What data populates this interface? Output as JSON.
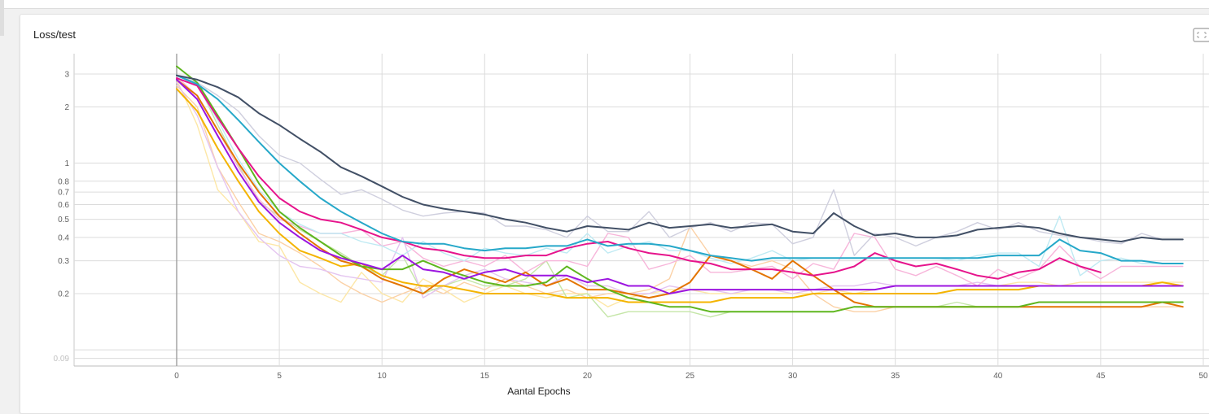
{
  "card": {
    "title": "Loss/test"
  },
  "chart_data": {
    "type": "line",
    "title": "Loss/test",
    "xlabel": "Aantal Epochs",
    "ylabel": "",
    "yscale": "log",
    "xlim": [
      -5,
      50
    ],
    "ylim": [
      0.085,
      3.6
    ],
    "xticks": [
      0,
      5,
      10,
      15,
      20,
      25,
      30,
      35,
      40,
      45,
      50
    ],
    "yticks": [
      {
        "value": 0.09,
        "label": "0.09"
      },
      {
        "value": 0.2,
        "label": "0.2"
      },
      {
        "value": 0.3,
        "label": "0.3"
      },
      {
        "value": 0.4,
        "label": "0.4"
      },
      {
        "value": 0.5,
        "label": "0.5"
      },
      {
        "value": 0.6,
        "label": "0.6"
      },
      {
        "value": 0.7,
        "label": "0.7"
      },
      {
        "value": 0.8,
        "label": "0.8"
      },
      {
        "value": 1,
        "label": "1"
      },
      {
        "value": 2,
        "label": "2"
      },
      {
        "value": 3,
        "label": "3"
      }
    ],
    "extra_gridlines": [
      0.1
    ],
    "grid": true,
    "series": [
      {
        "color": "#fde7a7",
        "light": true,
        "values": [
          2.8,
          1.6,
          0.72,
          0.55,
          0.38,
          0.36,
          0.23,
          0.2,
          0.18,
          0.26,
          0.2,
          0.18,
          0.24,
          0.21,
          0.18,
          0.2,
          0.22,
          0.2,
          0.19,
          0.2,
          0.2,
          0.17,
          0.19,
          0.2,
          0.21,
          0.21,
          0.2,
          0.2,
          0.2,
          0.2,
          0.2,
          0.2,
          0.21,
          0.2,
          0.21,
          0.22,
          0.22,
          0.22,
          0.22,
          0.22,
          0.22,
          0.23,
          0.23,
          0.22,
          0.23,
          0.23,
          0.23,
          0.23,
          0.23,
          0.23
        ]
      },
      {
        "color": "#fbd1a6",
        "light": true,
        "values": [
          2.6,
          2.0,
          0.95,
          0.62,
          0.42,
          0.38,
          0.33,
          0.28,
          0.23,
          0.2,
          0.18,
          0.2,
          0.22,
          0.2,
          0.23,
          0.21,
          0.24,
          0.22,
          0.2,
          0.21,
          0.19,
          0.2,
          0.2,
          0.21,
          0.24,
          0.46,
          0.32,
          0.3,
          0.28,
          0.3,
          0.27,
          0.2,
          0.17,
          0.16,
          0.16,
          0.17,
          0.17,
          0.17,
          0.17,
          0.17,
          0.17,
          0.17,
          0.17,
          0.17,
          0.17,
          0.17,
          0.17,
          0.17,
          0.17,
          0.17
        ]
      },
      {
        "color": "#c5e6a8",
        "light": true,
        "values": [
          3.3,
          2.7,
          1.6,
          0.98,
          0.62,
          0.52,
          0.44,
          0.38,
          0.33,
          0.28,
          0.25,
          0.32,
          0.2,
          0.22,
          0.24,
          0.22,
          0.22,
          0.24,
          0.3,
          0.19,
          0.2,
          0.15,
          0.16,
          0.16,
          0.16,
          0.16,
          0.15,
          0.16,
          0.16,
          0.16,
          0.16,
          0.16,
          0.16,
          0.17,
          0.17,
          0.17,
          0.17,
          0.17,
          0.18,
          0.17,
          0.17,
          0.17,
          0.18,
          0.18,
          0.18,
          0.18,
          0.18,
          0.18,
          0.18,
          0.18
        ]
      },
      {
        "color": "#e4c4f0",
        "light": true,
        "values": [
          2.7,
          1.8,
          0.95,
          0.55,
          0.4,
          0.32,
          0.28,
          0.27,
          0.25,
          0.24,
          0.23,
          0.4,
          0.19,
          0.22,
          0.25,
          0.27,
          0.24,
          0.23,
          0.22,
          0.25,
          0.22,
          0.22,
          0.2,
          0.2,
          0.22,
          0.21,
          0.21,
          0.2,
          0.21,
          0.21,
          0.2,
          0.21,
          0.22,
          0.22,
          0.23,
          0.22,
          0.22,
          0.22,
          0.22,
          0.23,
          0.22,
          0.22,
          0.22,
          0.22,
          0.22,
          0.22,
          0.22,
          0.22,
          0.22,
          0.22
        ]
      },
      {
        "color": "#f7b5da",
        "light": true,
        "values": [
          2.9,
          2.3,
          1.5,
          0.95,
          0.64,
          0.5,
          0.46,
          0.42,
          0.42,
          0.44,
          0.36,
          0.38,
          0.31,
          0.28,
          0.3,
          0.28,
          0.32,
          0.26,
          0.3,
          0.3,
          0.28,
          0.42,
          0.4,
          0.27,
          0.29,
          0.32,
          0.26,
          0.26,
          0.27,
          0.28,
          0.24,
          0.29,
          0.27,
          0.42,
          0.4,
          0.27,
          0.25,
          0.28,
          0.25,
          0.22,
          0.27,
          0.24,
          0.27,
          0.36,
          0.28,
          0.24,
          0.28,
          0.28,
          0.28,
          0.28
        ]
      },
      {
        "color": "#bfeaf3",
        "light": true,
        "values": [
          2.95,
          2.6,
          1.7,
          1.05,
          0.72,
          0.55,
          0.47,
          0.42,
          0.42,
          0.38,
          0.36,
          0.32,
          0.38,
          0.33,
          0.3,
          0.35,
          0.33,
          0.32,
          0.35,
          0.33,
          0.42,
          0.33,
          0.36,
          0.38,
          0.34,
          0.34,
          0.31,
          0.29,
          0.31,
          0.34,
          0.3,
          0.31,
          0.31,
          0.31,
          0.31,
          0.31,
          0.31,
          0.31,
          0.3,
          0.32,
          0.33,
          0.33,
          0.28,
          0.52,
          0.25,
          0.3,
          0.31,
          0.29,
          0.29,
          0.29
        ]
      },
      {
        "color": "#cfcfde",
        "light": true,
        "values": [
          2.95,
          2.7,
          2.3,
          1.9,
          1.4,
          1.1,
          1.0,
          0.82,
          0.68,
          0.72,
          0.64,
          0.56,
          0.52,
          0.54,
          0.55,
          0.54,
          0.46,
          0.46,
          0.44,
          0.4,
          0.52,
          0.43,
          0.43,
          0.55,
          0.4,
          0.45,
          0.48,
          0.43,
          0.48,
          0.47,
          0.37,
          0.4,
          0.72,
          0.32,
          0.42,
          0.4,
          0.36,
          0.4,
          0.43,
          0.48,
          0.44,
          0.48,
          0.43,
          0.41,
          0.4,
          0.38,
          0.37,
          0.42,
          0.39,
          0.39
        ]
      },
      {
        "color": "#f4b400",
        "light": false,
        "values": [
          2.5,
          1.9,
          1.2,
          0.8,
          0.55,
          0.42,
          0.34,
          0.31,
          0.28,
          0.29,
          0.25,
          0.23,
          0.22,
          0.22,
          0.21,
          0.2,
          0.2,
          0.2,
          0.2,
          0.19,
          0.19,
          0.19,
          0.18,
          0.18,
          0.18,
          0.18,
          0.18,
          0.19,
          0.19,
          0.19,
          0.19,
          0.2,
          0.2,
          0.2,
          0.2,
          0.2,
          0.2,
          0.2,
          0.21,
          0.21,
          0.21,
          0.21,
          0.22,
          0.22,
          0.22,
          0.22,
          0.22,
          0.22,
          0.23,
          0.22
        ]
      },
      {
        "color": "#e37400",
        "light": false,
        "values": [
          2.8,
          2.3,
          1.5,
          1.0,
          0.7,
          0.52,
          0.42,
          0.35,
          0.3,
          0.28,
          0.24,
          0.22,
          0.2,
          0.24,
          0.27,
          0.25,
          0.23,
          0.26,
          0.22,
          0.24,
          0.21,
          0.21,
          0.2,
          0.19,
          0.2,
          0.23,
          0.32,
          0.3,
          0.27,
          0.24,
          0.3,
          0.25,
          0.21,
          0.18,
          0.17,
          0.17,
          0.17,
          0.17,
          0.17,
          0.17,
          0.17,
          0.17,
          0.17,
          0.17,
          0.17,
          0.17,
          0.17,
          0.17,
          0.18,
          0.17
        ]
      },
      {
        "color": "#5fb61f",
        "light": false,
        "values": [
          3.3,
          2.7,
          1.8,
          1.2,
          0.78,
          0.55,
          0.45,
          0.38,
          0.32,
          0.28,
          0.27,
          0.27,
          0.3,
          0.27,
          0.25,
          0.23,
          0.22,
          0.22,
          0.23,
          0.28,
          0.24,
          0.21,
          0.19,
          0.18,
          0.17,
          0.17,
          0.16,
          0.16,
          0.16,
          0.16,
          0.16,
          0.16,
          0.16,
          0.17,
          0.17,
          0.17,
          0.17,
          0.17,
          0.17,
          0.17,
          0.17,
          0.17,
          0.18,
          0.18,
          0.18,
          0.18,
          0.18,
          0.18,
          0.18,
          0.18
        ]
      },
      {
        "color": "#9c15e0",
        "light": false,
        "values": [
          2.8,
          2.2,
          1.4,
          0.9,
          0.62,
          0.48,
          0.4,
          0.34,
          0.31,
          0.29,
          0.27,
          0.32,
          0.27,
          0.26,
          0.24,
          0.26,
          0.27,
          0.25,
          0.25,
          0.25,
          0.23,
          0.24,
          0.22,
          0.22,
          0.2,
          0.21,
          0.21,
          0.21,
          0.21,
          0.21,
          0.21,
          0.21,
          0.21,
          0.21,
          0.21,
          0.22,
          0.22,
          0.22,
          0.22,
          0.22,
          0.22,
          0.22,
          0.22,
          0.22,
          0.22,
          0.22,
          0.22,
          0.22,
          0.22,
          0.22
        ]
      },
      {
        "color": "#e6148c",
        "light": false,
        "values": [
          2.85,
          2.6,
          1.75,
          1.2,
          0.85,
          0.65,
          0.55,
          0.5,
          0.48,
          0.44,
          0.4,
          0.38,
          0.35,
          0.34,
          0.32,
          0.31,
          0.31,
          0.32,
          0.32,
          0.35,
          0.37,
          0.38,
          0.35,
          0.33,
          0.32,
          0.3,
          0.29,
          0.27,
          0.27,
          0.27,
          0.26,
          0.25,
          0.26,
          0.28,
          0.33,
          0.3,
          0.28,
          0.29,
          0.27,
          0.25,
          0.24,
          0.26,
          0.27,
          0.31,
          0.28,
          0.26
        ]
      },
      {
        "color": "#26a8c9",
        "light": false,
        "values": [
          2.95,
          2.65,
          2.2,
          1.7,
          1.3,
          1.0,
          0.8,
          0.65,
          0.55,
          0.48,
          0.42,
          0.38,
          0.37,
          0.37,
          0.35,
          0.34,
          0.35,
          0.35,
          0.36,
          0.36,
          0.39,
          0.36,
          0.37,
          0.37,
          0.36,
          0.34,
          0.32,
          0.31,
          0.3,
          0.31,
          0.31,
          0.31,
          0.31,
          0.31,
          0.31,
          0.31,
          0.31,
          0.31,
          0.31,
          0.31,
          0.32,
          0.32,
          0.32,
          0.39,
          0.34,
          0.33,
          0.3,
          0.3,
          0.29,
          0.29
        ]
      },
      {
        "color": "#425066",
        "light": false,
        "values": [
          2.95,
          2.8,
          2.55,
          2.25,
          1.85,
          1.6,
          1.35,
          1.15,
          0.95,
          0.85,
          0.75,
          0.66,
          0.6,
          0.57,
          0.55,
          0.53,
          0.5,
          0.48,
          0.45,
          0.43,
          0.46,
          0.45,
          0.44,
          0.48,
          0.45,
          0.46,
          0.47,
          0.45,
          0.46,
          0.47,
          0.43,
          0.42,
          0.54,
          0.46,
          0.41,
          0.42,
          0.4,
          0.4,
          0.41,
          0.44,
          0.45,
          0.46,
          0.45,
          0.42,
          0.4,
          0.39,
          0.38,
          0.4,
          0.39,
          0.39
        ]
      }
    ]
  }
}
